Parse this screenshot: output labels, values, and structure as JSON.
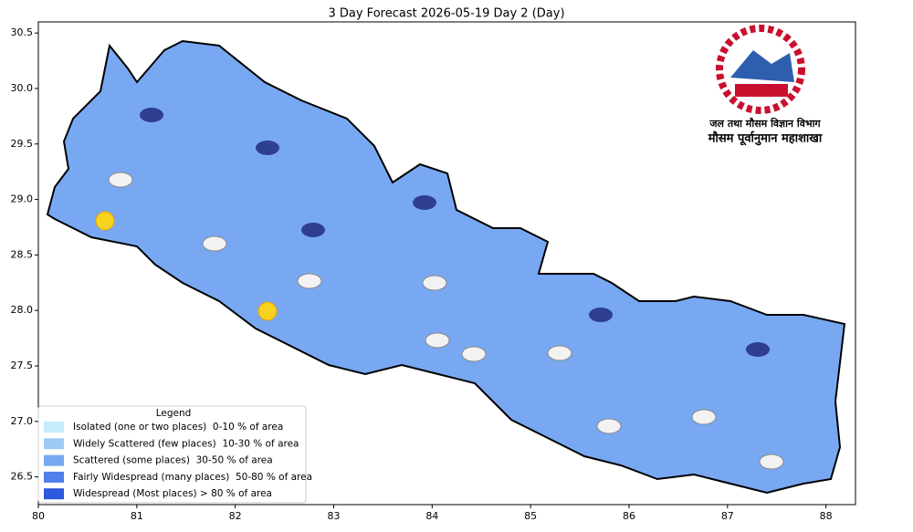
{
  "chart_data": {
    "type": "map",
    "title": "3 Day Forecast 2026-05-19 Day 2 (Day)",
    "xlim": [
      80,
      88.3
    ],
    "ylim": [
      26.25,
      30.6
    ],
    "xticks": [
      80,
      81,
      82,
      83,
      84,
      85,
      86,
      87,
      88
    ],
    "yticks": [
      26.5,
      {
        "value": 27,
        "label": "27.0"
      },
      27.5,
      {
        "value": 28,
        "label": "28.0"
      },
      28.5,
      {
        "value": 29,
        "label": "29.0"
      },
      29.5,
      {
        "value": 30,
        "label": "30.0"
      },
      30.5
    ],
    "legend": {
      "title": "Legend",
      "entries": [
        {
          "name": "Isolated (one or two places)  0-10 % of area",
          "color": "#c4ecfc"
        },
        {
          "name": "Widely Scattered (few places)  10-30 % of area",
          "color": "#9ecbf6"
        },
        {
          "name": "Scattered (some places)  30-50 % of area",
          "color": "#78a8f2"
        },
        {
          "name": "Fairly Widespread (many places)  50-80 % of area",
          "color": "#5080ea"
        },
        {
          "name": "Widespread (Most places) > 80 % of area",
          "color": "#2c58dc"
        }
      ]
    },
    "logo": {
      "line1": "जल तथा मौसम विज्ञान विभाग",
      "line2": "मौसम पूर्वानुमान महाशाखा"
    }
  }
}
